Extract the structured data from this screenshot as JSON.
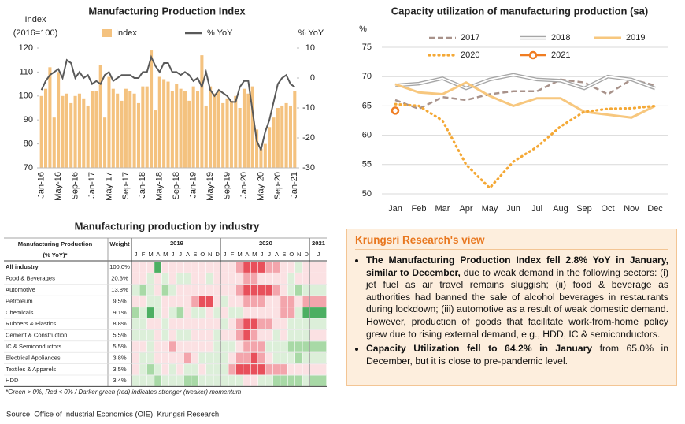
{
  "chart_data": [
    {
      "type": "bar",
      "title": "Manufacturing Production Index",
      "ylabel": [
        "Index",
        "(2016=100)"
      ],
      "y2label": "% YoY",
      "categories": [
        "Jan-16",
        null,
        null,
        null,
        "May-16",
        null,
        null,
        null,
        "Sep-16",
        null,
        null,
        null,
        "Jan-17",
        null,
        null,
        null,
        "May-17",
        null,
        null,
        null,
        "Sep-17",
        null,
        null,
        null,
        "Jan-18",
        null,
        null,
        null,
        "May-18",
        null,
        null,
        null,
        "Sep-18",
        null,
        null,
        null,
        "Jan-19",
        null,
        null,
        null,
        "May-19",
        null,
        null,
        null,
        "Sep-19",
        null,
        null,
        null,
        "Jan-20",
        null,
        null,
        null,
        "May-20",
        null,
        null,
        null,
        "Sep-20",
        null,
        null,
        null,
        "Jan-21"
      ],
      "series": [
        {
          "name": "Index",
          "type": "bar",
          "color": "#f4c27f",
          "values": [
            100,
            103,
            112,
            91,
            110,
            100,
            101,
            97,
            100,
            101,
            99,
            96,
            102,
            102,
            113,
            91,
            108,
            103,
            101,
            98,
            103,
            102,
            101,
            97,
            104,
            104,
            119,
            94,
            108,
            107,
            106,
            102,
            105,
            103,
            102,
            98,
            104,
            102,
            117,
            96,
            104,
            101,
            102,
            97,
            99,
            98,
            100,
            95,
            103,
            101,
            104,
            86,
            78,
            80,
            87,
            91,
            95,
            96,
            97,
            96,
            102
          ]
        },
        {
          "name": "% YoY",
          "type": "line",
          "axis": "y2",
          "color": "#595959",
          "values": [
            -4,
            -1,
            1,
            2,
            3,
            0,
            6,
            5,
            0,
            2,
            0,
            1,
            -2,
            -1,
            -2,
            1,
            2,
            -1,
            0,
            1,
            1,
            1,
            0,
            0,
            2,
            2,
            7,
            4,
            2,
            5,
            5,
            2,
            2,
            1,
            2,
            1,
            -1,
            0,
            -3,
            2,
            -4,
            -6,
            -4,
            -5,
            -6,
            -8,
            -8,
            -3,
            -1,
            -1,
            -11,
            -21,
            -24,
            -18,
            -14,
            -8,
            -2,
            0,
            1,
            -2,
            -3
          ]
        }
      ],
      "ylim": [
        70,
        120
      ],
      "yticks": [
        70,
        80,
        90,
        100,
        110,
        120
      ],
      "y2lim": [
        -30,
        10
      ],
      "y2ticks": [
        -30,
        -20,
        -10,
        0,
        10
      ],
      "grid": false,
      "legend": "top"
    },
    {
      "type": "line",
      "title": "Capacity utilization of manufacturing production (sa)",
      "ylabel": "%",
      "categories": [
        "Jan",
        "Feb",
        "Mar",
        "Apr",
        "May",
        "Jun",
        "Jul",
        "Aug",
        "Sep",
        "Oct",
        "Nov",
        "Dec"
      ],
      "series": [
        {
          "name": "2017",
          "color": "#a8928a",
          "style": "dashed",
          "values": [
            66,
            64.5,
            66.5,
            66,
            67,
            67.5,
            67.5,
            69.5,
            69,
            67,
            69.5,
            68.5
          ]
        },
        {
          "name": "2018",
          "color": "#a6a6a6",
          "style": "double",
          "values": [
            68.5,
            68.8,
            69.7,
            68,
            69.5,
            70.3,
            69.5,
            69.3,
            68,
            70,
            69.5,
            68
          ]
        },
        {
          "name": "2019",
          "color": "#f7c77e",
          "style": "solid",
          "values": [
            68.7,
            67.3,
            67,
            69,
            66.7,
            65,
            66.3,
            66.3,
            64,
            63.5,
            63,
            65
          ]
        },
        {
          "name": "2020",
          "color": "#f4a835",
          "style": "dotted",
          "values": [
            65.3,
            65,
            62.5,
            55,
            51,
            55.5,
            58,
            61.5,
            64,
            64.5,
            64.6,
            65
          ]
        },
        {
          "name": "2021",
          "color": "#f07d22",
          "style": "marker",
          "values": [
            64.2,
            null,
            null,
            null,
            null,
            null,
            null,
            null,
            null,
            null,
            null,
            null
          ]
        }
      ],
      "ylim": [
        50,
        75
      ],
      "yticks": [
        50,
        55,
        60,
        65,
        70,
        75
      ],
      "grid": true,
      "legend": "top"
    }
  ],
  "table": {
    "title": "Manufacturing production by industry",
    "header": {
      "name": "Manufacturing Production",
      "name_note": "(% YoY)*",
      "weight": "Weight",
      "years": [
        "2019",
        "2020",
        "2021"
      ],
      "months": [
        "J",
        "F",
        "M",
        "A",
        "M",
        "J",
        "J",
        "A",
        "S",
        "O",
        "N",
        "D"
      ]
    },
    "colors": {
      "positive": [
        "#dcefd9",
        "#a8d9a6",
        "#4caf62"
      ],
      "negative": [
        "#fbe1e3",
        "#f3a5ac",
        "#e8505b"
      ]
    },
    "rows": [
      {
        "name": "All industry",
        "weight": "100.0%",
        "values": [
          -1,
          -1,
          -1,
          3,
          -1,
          -1,
          -1,
          -1,
          -1,
          -1,
          -1,
          -1,
          -1,
          -1,
          -2,
          -3,
          -3,
          -3,
          -2,
          -2,
          -1,
          -1,
          1,
          -1,
          -1
        ]
      },
      {
        "name": "Food & Beverages",
        "weight": "20.3%",
        "values": [
          -1,
          -1,
          1,
          -1,
          1,
          -1,
          1,
          1,
          -1,
          -1,
          1,
          -1,
          -1,
          -1,
          -1,
          -2,
          -2,
          -1,
          -1,
          -1,
          -1,
          1,
          -1,
          -1,
          -1
        ]
      },
      {
        "name": "Automotive",
        "weight": "13.8%",
        "values": [
          1,
          2,
          1,
          -1,
          2,
          1,
          -1,
          -1,
          -1,
          -1,
          -1,
          -1,
          -1,
          -1,
          -2,
          -3,
          -3,
          -3,
          -3,
          -2,
          -1,
          1,
          2,
          1,
          1
        ]
      },
      {
        "name": "Petroleum",
        "weight": "9.5%",
        "values": [
          -1,
          -1,
          1,
          1,
          -1,
          -1,
          -1,
          -1,
          -2,
          -3,
          -3,
          -1,
          1,
          -1,
          -1,
          -2,
          -2,
          -2,
          -1,
          -1,
          -2,
          -2,
          -1,
          -2,
          -2
        ]
      },
      {
        "name": "Chemicals",
        "weight": "9.1%",
        "values": [
          2,
          1,
          3,
          1,
          -1,
          1,
          2,
          -1,
          1,
          1,
          -1,
          1,
          -1,
          1,
          1,
          -1,
          -1,
          -1,
          -1,
          -1,
          -2,
          -2,
          1,
          3,
          3
        ]
      },
      {
        "name": "Rubbers & Plastics",
        "weight": "8.8%",
        "values": [
          1,
          1,
          -1,
          -1,
          1,
          -1,
          -1,
          -1,
          -1,
          -1,
          -1,
          -1,
          1,
          -1,
          -2,
          -3,
          -3,
          -2,
          -2,
          -1,
          -1,
          1,
          1,
          1,
          1
        ]
      },
      {
        "name": "Cement & Construction",
        "weight": "5.5%",
        "values": [
          1,
          1,
          1,
          -1,
          1,
          -1,
          1,
          1,
          -1,
          -1,
          -1,
          1,
          -1,
          -1,
          -2,
          -3,
          -2,
          -1,
          -1,
          1,
          -1,
          1,
          1,
          1,
          -1
        ]
      },
      {
        "name": "IC & Semiconductors",
        "weight": "5.5%",
        "values": [
          -1,
          -1,
          1,
          -1,
          -1,
          -2,
          -1,
          -1,
          -1,
          -1,
          -1,
          1,
          1,
          1,
          -1,
          -2,
          -2,
          -2,
          1,
          1,
          1,
          2,
          2,
          2,
          2
        ]
      },
      {
        "name": "Electrical Appliances",
        "weight": "3.8%",
        "values": [
          -1,
          1,
          1,
          -1,
          -1,
          -1,
          -1,
          -2,
          -1,
          1,
          1,
          1,
          1,
          -1,
          -2,
          -2,
          -3,
          -2,
          -1,
          1,
          1,
          1,
          2,
          1,
          1
        ]
      },
      {
        "name": "Textiles & Apparels",
        "weight": "3.5%",
        "values": [
          -1,
          1,
          2,
          1,
          -1,
          1,
          -1,
          1,
          1,
          -1,
          1,
          1,
          1,
          -2,
          -3,
          -3,
          -3,
          -3,
          -2,
          -2,
          -2,
          -1,
          -1,
          -1,
          -1
        ]
      },
      {
        "name": "HDD",
        "weight": "3.4%",
        "values": [
          1,
          1,
          1,
          2,
          1,
          1,
          1,
          2,
          2,
          1,
          1,
          1,
          1,
          1,
          1,
          -1,
          -1,
          1,
          1,
          2,
          2,
          2,
          2,
          1,
          2
        ]
      }
    ],
    "footnote": "*Green > 0%, Red < 0% / Darker green (red) indicates stronger (weaker) momentum"
  },
  "view": {
    "title": "Krungsri Research's view",
    "bullets": [
      [
        {
          "text": "The Manufacturing Production Index fell 2.8% YoY in January, similar to December,",
          "bold": true
        },
        {
          "text": " due to weak demand in the following sectors: (i) jet fuel as air travel remains sluggish; (ii) food & beverage as authorities had banned the sale of alcohol beverages in restaurants during lockdown; (iii) automotive as a result of weak domestic demand. However, production of goods that facilitate work-from-home policy grew due to rising external demand, e.g., HDD, IC & semiconductors.",
          "bold": false
        }
      ],
      [
        {
          "text": "Capacity Utilization fell to 64.2% in January",
          "bold": true
        },
        {
          "text": " from 65.0% in December, but it is close to pre-pandemic level.",
          "bold": false
        }
      ]
    ]
  },
  "source": "Source: Office of Industrial Economics (OIE), Krungsri Research"
}
